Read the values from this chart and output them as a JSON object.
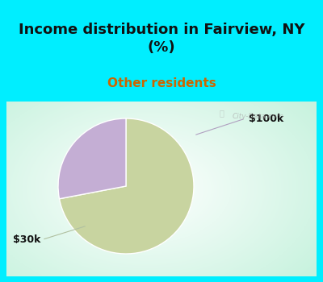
{
  "title": "Income distribution in Fairview, NY\n(%)",
  "subtitle": "Other residents",
  "slices": [
    72,
    28
  ],
  "labels": [
    "$30k",
    "$100k"
  ],
  "colors": [
    "#c8d4a0",
    "#c4aed4"
  ],
  "title_fontsize": 13,
  "subtitle_fontsize": 11,
  "subtitle_color": "#cc6600",
  "title_color": "#111111",
  "label_color": "#111111",
  "label_fontsize": 9,
  "bg_color": "#00eeff",
  "chart_bg": "#e8f5ec",
  "watermark": "City-Data.com",
  "start_angle": 90
}
